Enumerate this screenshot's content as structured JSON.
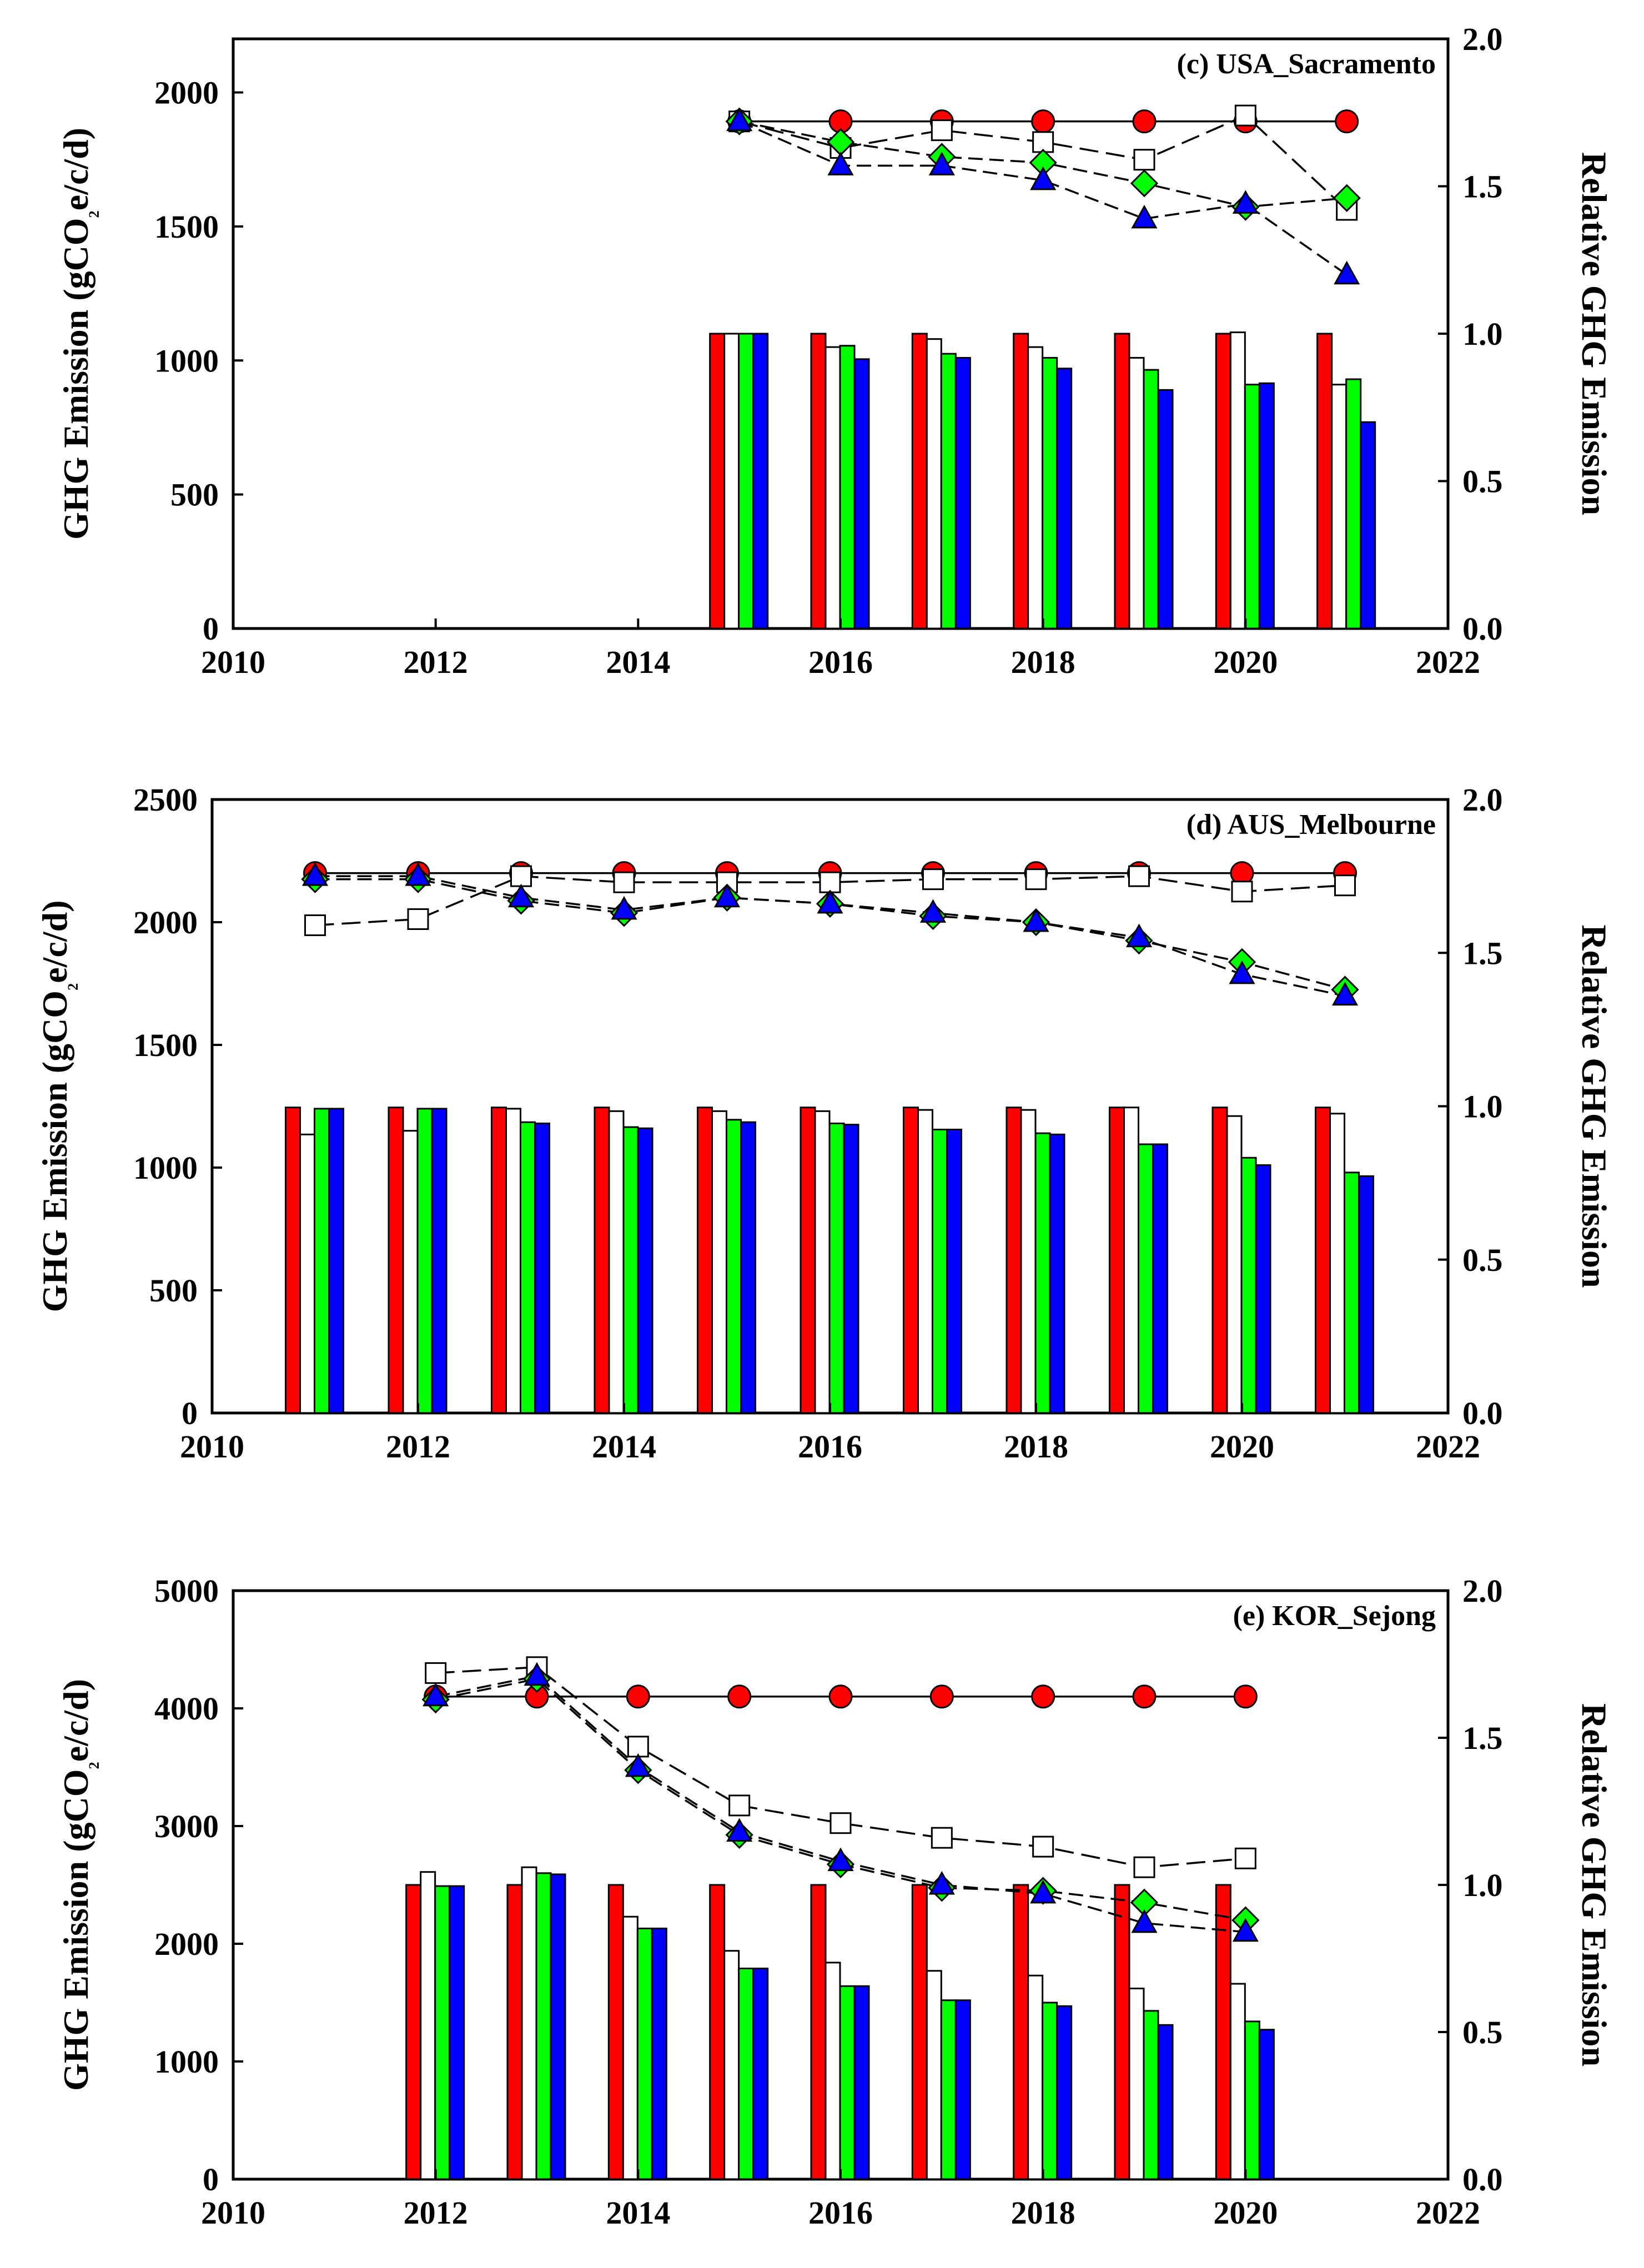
{
  "chart_data": [
    {
      "type": "bar",
      "title": "(c) USA_Sacramento",
      "ylabel": "GHG Emission (gCO₂e/c/d)",
      "ylabel_right": "Relative GHG Emission",
      "xlim": [
        2010,
        2022
      ],
      "ylim": [
        0,
        2200
      ],
      "ylim_right": [
        0,
        2.0
      ],
      "xticks": [
        2010,
        2012,
        2014,
        2016,
        2018,
        2020,
        2022
      ],
      "yticks": [
        0,
        500,
        1000,
        1500,
        2000
      ],
      "yticks_right": [
        0.0,
        0.5,
        1.0,
        1.5,
        2.0
      ],
      "x": [
        2015,
        2016,
        2017,
        2018,
        2019,
        2020,
        2021
      ],
      "series": [
        {
          "name": "red",
          "color": "#ff0000",
          "marker": "circle",
          "line": "solid",
          "values": [
            1100,
            1100,
            1100,
            1100,
            1100,
            1100,
            1100
          ],
          "relative": [
            1.72,
            1.72,
            1.72,
            1.72,
            1.72,
            1.72,
            1.72
          ]
        },
        {
          "name": "white",
          "color": "#ffffff",
          "marker": "square",
          "line": "long-dash",
          "values": [
            1100,
            1050,
            1080,
            1050,
            1010,
            1105,
            910
          ],
          "relative": [
            1.72,
            1.63,
            1.69,
            1.65,
            1.59,
            1.74,
            1.42
          ]
        },
        {
          "name": "green",
          "color": "#00ff00",
          "marker": "diamond",
          "line": "dash",
          "values": [
            1100,
            1055,
            1025,
            1010,
            965,
            910,
            930
          ],
          "relative": [
            1.72,
            1.65,
            1.6,
            1.58,
            1.51,
            1.43,
            1.46
          ]
        },
        {
          "name": "blue",
          "color": "#0000ff",
          "marker": "triangle",
          "line": "dash",
          "values": [
            1100,
            1005,
            1010,
            970,
            890,
            915,
            770
          ],
          "relative": [
            1.72,
            1.57,
            1.57,
            1.52,
            1.39,
            1.44,
            1.2
          ]
        }
      ]
    },
    {
      "type": "bar",
      "title": "(d) AUS_Melbourne",
      "ylabel": "GHG Emission (gCO₂e/c/d)",
      "ylabel_right": "Relative GHG Emission",
      "xlim": [
        2010,
        2022
      ],
      "ylim": [
        0,
        2500
      ],
      "ylim_right": [
        0,
        2.0
      ],
      "xticks": [
        2010,
        2012,
        2014,
        2016,
        2018,
        2020,
        2022
      ],
      "yticks": [
        0,
        500,
        1000,
        1500,
        2000,
        2500
      ],
      "yticks_right": [
        0.0,
        0.5,
        1.0,
        1.5,
        2.0
      ],
      "x": [
        2011,
        2012,
        2013,
        2014,
        2015,
        2016,
        2017,
        2018,
        2019,
        2020,
        2021
      ],
      "series": [
        {
          "name": "red",
          "color": "#ff0000",
          "marker": "circle",
          "line": "solid",
          "values": [
            1245,
            1245,
            1245,
            1245,
            1245,
            1245,
            1245,
            1245,
            1245,
            1245,
            1245
          ],
          "relative": [
            1.76,
            1.76,
            1.76,
            1.76,
            1.76,
            1.76,
            1.76,
            1.76,
            1.76,
            1.76,
            1.76
          ]
        },
        {
          "name": "white",
          "color": "#ffffff",
          "marker": "square",
          "line": "long-dash",
          "values": [
            1135,
            1150,
            1240,
            1230,
            1230,
            1230,
            1235,
            1235,
            1245,
            1210,
            1220
          ],
          "relative": [
            1.59,
            1.61,
            1.75,
            1.73,
            1.73,
            1.73,
            1.74,
            1.74,
            1.75,
            1.7,
            1.72
          ]
        },
        {
          "name": "green",
          "color": "#00ff00",
          "marker": "diamond",
          "line": "dash",
          "values": [
            1240,
            1240,
            1185,
            1165,
            1195,
            1180,
            1155,
            1140,
            1095,
            1040,
            980
          ],
          "relative": [
            1.74,
            1.74,
            1.67,
            1.63,
            1.68,
            1.66,
            1.62,
            1.6,
            1.54,
            1.47,
            1.38
          ]
        },
        {
          "name": "blue",
          "color": "#0000ff",
          "marker": "triangle",
          "line": "dash",
          "values": [
            1240,
            1240,
            1180,
            1160,
            1185,
            1175,
            1155,
            1135,
            1095,
            1010,
            965
          ],
          "relative": [
            1.75,
            1.75,
            1.68,
            1.64,
            1.68,
            1.66,
            1.63,
            1.6,
            1.55,
            1.43,
            1.36
          ]
        }
      ]
    },
    {
      "type": "bar",
      "title": "(e) KOR_Sejong",
      "ylabel": "GHG Emission (gCO₂e/c/d)",
      "ylabel_right": "Relative GHG Emission",
      "xlim": [
        2010,
        2022
      ],
      "ylim": [
        0,
        5000
      ],
      "ylim_right": [
        0,
        2.0
      ],
      "xticks": [
        2010,
        2012,
        2014,
        2016,
        2018,
        2020,
        2022
      ],
      "yticks": [
        0,
        1000,
        2000,
        3000,
        4000,
        5000
      ],
      "yticks_right": [
        0.0,
        0.5,
        1.0,
        1.5,
        2.0
      ],
      "x": [
        2012,
        2013,
        2014,
        2015,
        2016,
        2017,
        2018,
        2019,
        2020
      ],
      "series": [
        {
          "name": "red",
          "color": "#ff0000",
          "marker": "circle",
          "line": "solid",
          "values": [
            2500,
            2500,
            2500,
            2500,
            2500,
            2500,
            2500,
            2500,
            2500
          ],
          "relative": [
            1.64,
            1.64,
            1.64,
            1.64,
            1.64,
            1.64,
            1.64,
            1.64,
            1.64
          ]
        },
        {
          "name": "white",
          "color": "#ffffff",
          "marker": "square",
          "line": "long-dash",
          "values": [
            2610,
            2650,
            2230,
            1940,
            1840,
            1770,
            1730,
            1620,
            1660
          ],
          "relative": [
            1.72,
            1.74,
            1.47,
            1.27,
            1.21,
            1.16,
            1.13,
            1.06,
            1.09
          ]
        },
        {
          "name": "green",
          "color": "#00ff00",
          "marker": "diamond",
          "line": "dash",
          "values": [
            2490,
            2600,
            2130,
            1790,
            1640,
            1520,
            1500,
            1430,
            1340
          ],
          "relative": [
            1.63,
            1.7,
            1.39,
            1.17,
            1.07,
            0.99,
            0.98,
            0.94,
            0.88
          ]
        },
        {
          "name": "blue",
          "color": "#0000ff",
          "marker": "triangle",
          "line": "dash",
          "values": [
            2490,
            2590,
            2130,
            1790,
            1640,
            1520,
            1470,
            1310,
            1270
          ],
          "relative": [
            1.64,
            1.71,
            1.4,
            1.18,
            1.08,
            1.0,
            0.97,
            0.87,
            0.84
          ]
        }
      ]
    }
  ]
}
